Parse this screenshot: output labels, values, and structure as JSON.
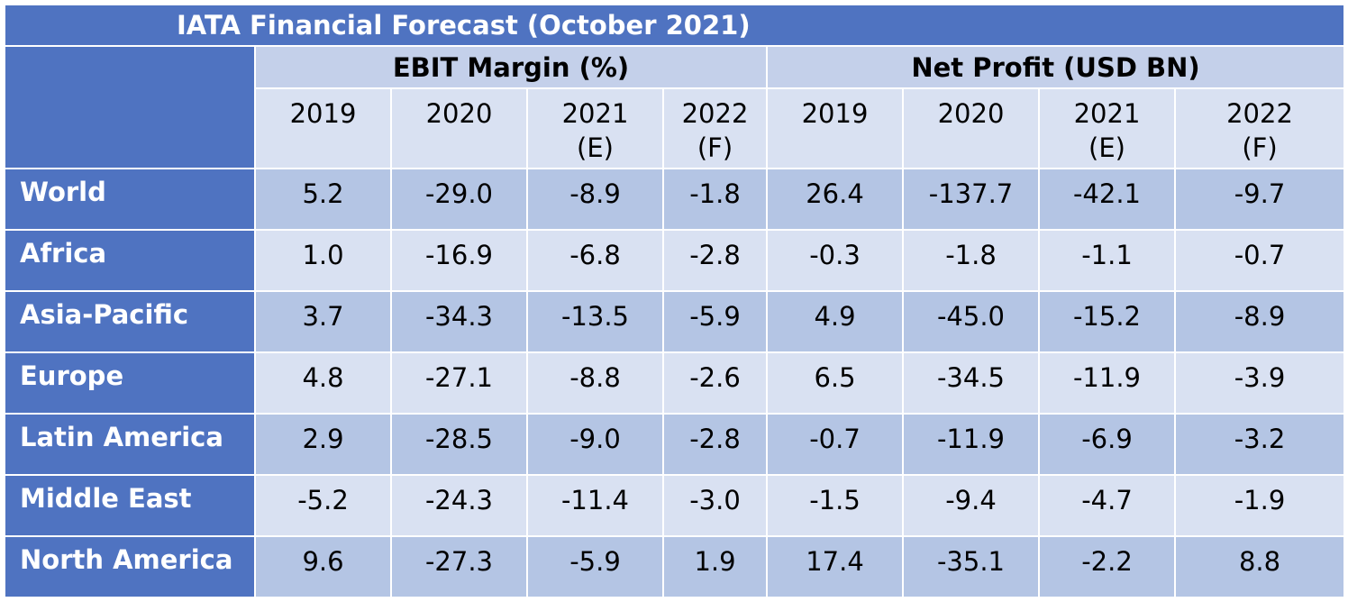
{
  "title": "IATA Financial Forecast (October 2021)",
  "groups": [
    {
      "label": "EBIT Margin (%)"
    },
    {
      "label": "Net Profit (USD BN)"
    }
  ],
  "years": [
    {
      "line1": "2019",
      "line2": ""
    },
    {
      "line1": "2020",
      "line2": ""
    },
    {
      "line1": "2021",
      "line2": "(E)"
    },
    {
      "line1": "2022",
      "line2": "(F)"
    },
    {
      "line1": "2019",
      "line2": ""
    },
    {
      "line1": "2020",
      "line2": ""
    },
    {
      "line1": "2021",
      "line2": "(E)"
    },
    {
      "line1": "2022",
      "line2": "(F)"
    }
  ],
  "rows": [
    {
      "region": "World",
      "values": [
        "5.2",
        "-29.0",
        "-8.9",
        "-1.8",
        "26.4",
        "-137.7",
        "-42.1",
        "-9.7"
      ]
    },
    {
      "region": "Africa",
      "values": [
        "1.0",
        "-16.9",
        "-6.8",
        "-2.8",
        "-0.3",
        "-1.8",
        "-1.1",
        "-0.7"
      ]
    },
    {
      "region": "Asia-Pacific",
      "values": [
        "3.7",
        "-34.3",
        "-13.5",
        "-5.9",
        "4.9",
        "-45.0",
        "-15.2",
        "-8.9"
      ]
    },
    {
      "region": "Europe",
      "values": [
        "4.8",
        "-27.1",
        "-8.8",
        "-2.6",
        "6.5",
        "-34.5",
        "-11.9",
        "-3.9"
      ]
    },
    {
      "region": "Latin America",
      "values": [
        "2.9",
        "-28.5",
        "-9.0",
        "-2.8",
        "-0.7",
        "-11.9",
        "-6.9",
        "-3.2"
      ]
    },
    {
      "region": "Middle East",
      "values": [
        "-5.2",
        "-24.3",
        "-11.4",
        "-3.0",
        "-1.5",
        "-9.4",
        "-4.7",
        "-1.9"
      ]
    },
    {
      "region": "North America",
      "values": [
        "9.6",
        "-27.3",
        "-5.9",
        "1.9",
        "17.4",
        "-35.1",
        "-2.2",
        "8.8"
      ]
    }
  ],
  "colors": {
    "header_blue": "#4f73c1",
    "group_header": "#c4d0ea",
    "band_dark": "#b4c5e4",
    "band_light": "#d9e1f2"
  }
}
